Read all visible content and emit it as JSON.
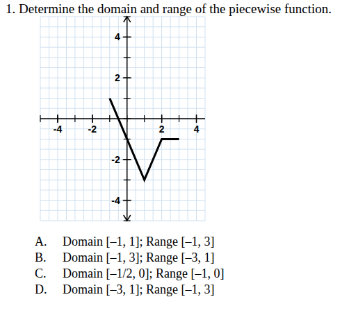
{
  "question": "1. Determine the domain and range of the piecewise function.",
  "chart_data": {
    "type": "line",
    "x": [
      -1,
      0,
      1,
      2,
      3
    ],
    "values": [
      1,
      -1,
      -3,
      -1,
      -1
    ],
    "color": "#000000",
    "xlim": [
      -5,
      4.5
    ],
    "ylim": [
      -5,
      5
    ],
    "xticks": [
      -4,
      -2,
      2,
      4
    ],
    "yticks": [
      -4,
      -2,
      2,
      4
    ],
    "grid": true
  },
  "choices": [
    {
      "letter": "A.",
      "text": "Domain [–1, 1]; Range [–1, 3]"
    },
    {
      "letter": "B.",
      "text": "Domain [–1, 3]; Range [–3, 1]"
    },
    {
      "letter": "C.",
      "text": "Domain [–1/2, 0]; Range [–1, 0]"
    },
    {
      "letter": "D.",
      "text": "Domain [–3, 1]; Range [–1, 3]"
    }
  ]
}
